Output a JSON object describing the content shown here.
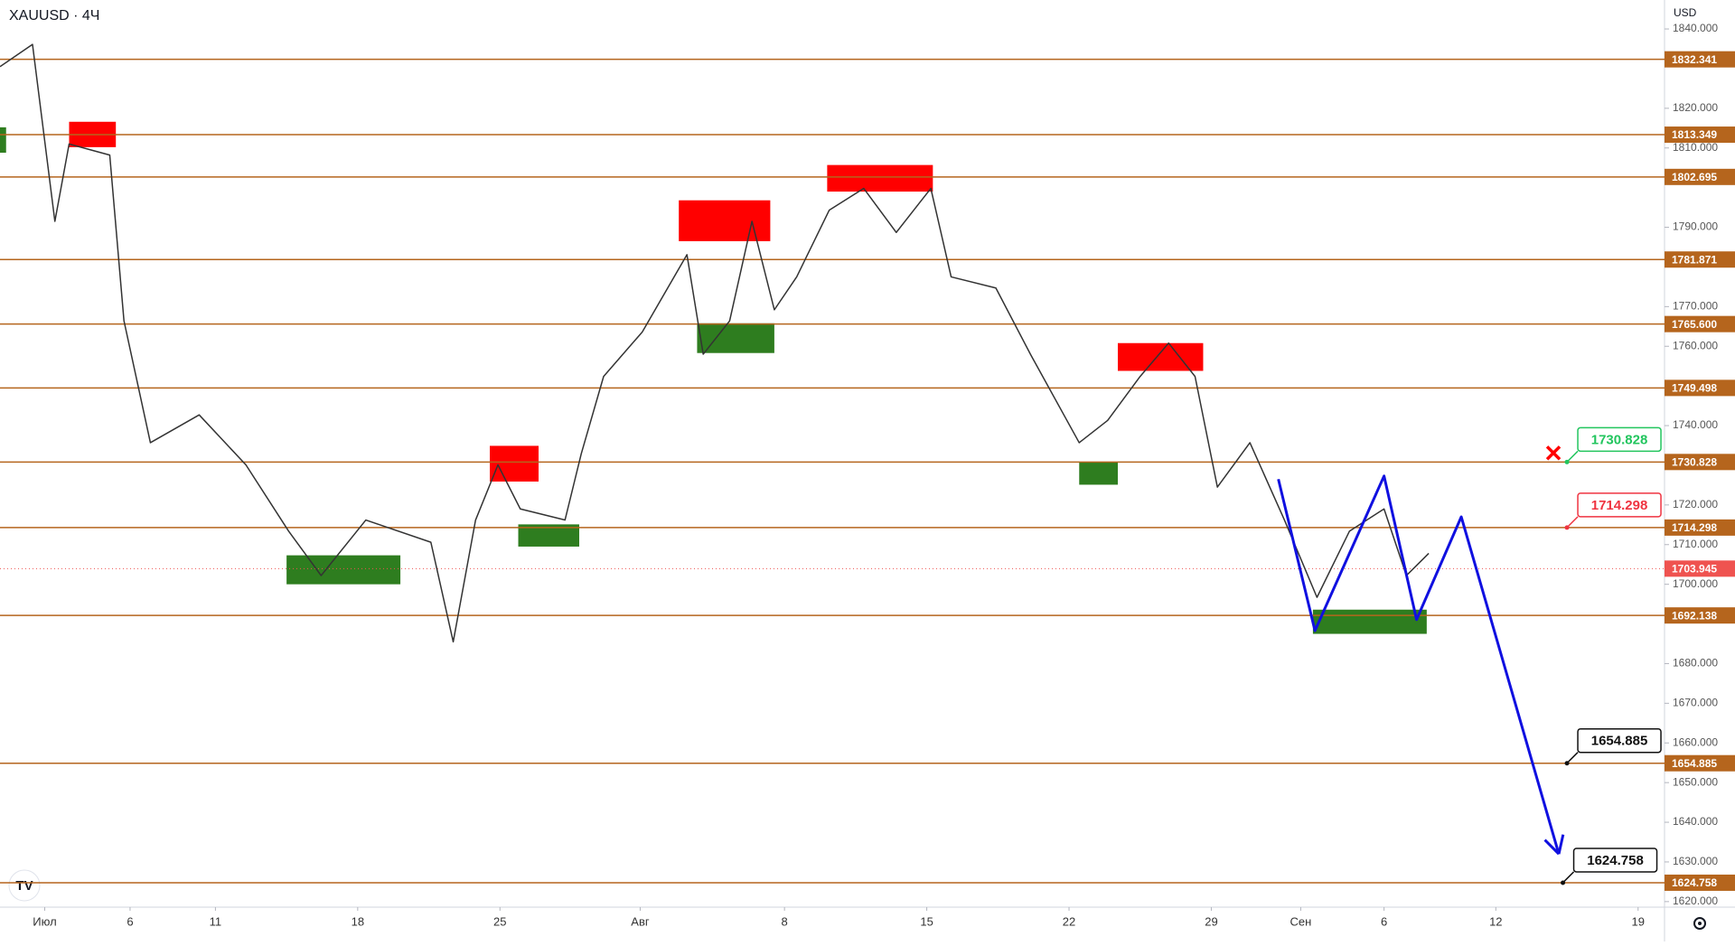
{
  "chart_data": {
    "type": "line",
    "title": "XAUUSD · 4Ч",
    "currency": "USD",
    "color": "#333333",
    "x": [
      0,
      1.6,
      2.7,
      3.4,
      5.4,
      6.1,
      7.4,
      9.8,
      12.1,
      14.2,
      15.8,
      18.0,
      21.2,
      22.3,
      23.4,
      24.5,
      25.6,
      27.8,
      28.6,
      29.7,
      31.6,
      33.8,
      34.6,
      35.9,
      37.0,
      38.1,
      39.2,
      40.8,
      42.5,
      44.1,
      45.8,
      46.8,
      49.0,
      50.7,
      53.1,
      54.5,
      56.1,
      57.5,
      58.8,
      59.9,
      61.5,
      63.2,
      64.8,
      66.4,
      68.1,
      69.2,
      70.3
    ],
    "values": [
      1830.5,
      1836.1,
      1791.5,
      1811.0,
      1808.2,
      1766.4,
      1735.7,
      1742.7,
      1730.1,
      1713.4,
      1702.2,
      1716.2,
      1710.6,
      1685.5,
      1716.2,
      1730.1,
      1719.0,
      1716.2,
      1732.9,
      1752.4,
      1763.6,
      1783.1,
      1758.0,
      1766.4,
      1791.5,
      1769.2,
      1777.5,
      1794.3,
      1799.8,
      1788.7,
      1799.8,
      1777.5,
      1774.7,
      1758.0,
      1735.7,
      1741.3,
      1752.4,
      1760.8,
      1752.4,
      1724.5,
      1735.7,
      1716.2,
      1696.7,
      1713.4,
      1719.0,
      1702.2,
      1707.8
    ],
    "xlim": [
      0,
      81.9
    ],
    "ylim": [
      1618.6,
      1847.3
    ],
    "xticks": [
      {
        "value": 2.2,
        "label": "Июл"
      },
      {
        "value": 6.4,
        "label": "6"
      },
      {
        "value": 10.6,
        "label": "11"
      },
      {
        "value": 17.6,
        "label": "18"
      },
      {
        "value": 24.6,
        "label": "25"
      },
      {
        "value": 31.5,
        "label": "Авг"
      },
      {
        "value": 38.6,
        "label": "8"
      },
      {
        "value": 45.6,
        "label": "15"
      },
      {
        "value": 52.6,
        "label": "22"
      },
      {
        "value": 59.6,
        "label": "29"
      },
      {
        "value": 64.0,
        "label": "Сен"
      },
      {
        "value": 68.1,
        "label": "6"
      },
      {
        "value": 73.6,
        "label": "12"
      },
      {
        "value": 80.6,
        "label": "19"
      }
    ],
    "yticks": [
      {
        "value": 1840,
        "label": "1840.000"
      },
      {
        "value": 1820,
        "label": "1820.000"
      },
      {
        "value": 1810,
        "label": "1810.000"
      },
      {
        "value": 1790,
        "label": "1790.000"
      },
      {
        "value": 1770,
        "label": "1770.000"
      },
      {
        "value": 1760,
        "label": "1760.000"
      },
      {
        "value": 1740,
        "label": "1740.000"
      },
      {
        "value": 1720,
        "label": "1720.000"
      },
      {
        "value": 1710,
        "label": "1710.000"
      },
      {
        "value": 1700,
        "label": "1700.000"
      },
      {
        "value": 1680,
        "label": "1680.000"
      },
      {
        "value": 1670,
        "label": "1670.000"
      },
      {
        "value": 1660,
        "label": "1660.000"
      },
      {
        "value": 1650,
        "label": "1650.000"
      },
      {
        "value": 1640,
        "label": "1640.000"
      },
      {
        "value": 1630,
        "label": "1630.000"
      },
      {
        "value": 1620,
        "label": "1620.000"
      }
    ],
    "levels": [
      {
        "value": 1832.341,
        "label": "1832.341"
      },
      {
        "value": 1813.349,
        "label": "1813.349"
      },
      {
        "value": 1802.695,
        "label": "1802.695"
      },
      {
        "value": 1781.871,
        "label": "1781.871"
      },
      {
        "value": 1765.6,
        "label": "1765.600"
      },
      {
        "value": 1749.498,
        "label": "1749.498"
      },
      {
        "value": 1730.828,
        "label": "1730.828"
      },
      {
        "value": 1714.298,
        "label": "1714.298"
      },
      {
        "value": 1692.138,
        "label": "1692.138"
      },
      {
        "value": 1654.885,
        "label": "1654.885"
      },
      {
        "value": 1624.758,
        "label": "1624.758"
      }
    ],
    "level_color": "#b5651d",
    "last_price": {
      "value": 1703.945,
      "label": "1703.945",
      "color": "#ef5350"
    },
    "zones": [
      {
        "x": [
          3.4,
          5.7
        ],
        "range": [
          1810.2,
          1816.6
        ],
        "color": "#ff0000"
      },
      {
        "x": [
          33.4,
          37.9
        ],
        "range": [
          1786.5,
          1796.8
        ],
        "color": "#ff0000"
      },
      {
        "x": [
          40.7,
          45.9
        ],
        "range": [
          1799.0,
          1805.7
        ],
        "color": "#ff0000"
      },
      {
        "x": [
          24.1,
          26.5
        ],
        "range": [
          1725.9,
          1734.9
        ],
        "color": "#ff0000"
      },
      {
        "x": [
          55.0,
          59.2
        ],
        "range": [
          1753.8,
          1760.8
        ],
        "color": "#ff0000"
      },
      {
        "x": [
          0,
          0.3
        ],
        "range": [
          1808.8,
          1815.2
        ],
        "color": "#2e7d1f"
      },
      {
        "x": [
          14.1,
          19.7
        ],
        "range": [
          1700.0,
          1707.3
        ],
        "color": "#2e7d1f"
      },
      {
        "x": [
          25.5,
          28.5
        ],
        "range": [
          1709.5,
          1715.1
        ],
        "color": "#2e7d1f"
      },
      {
        "x": [
          34.3,
          38.1
        ],
        "range": [
          1758.3,
          1765.8
        ],
        "color": "#2e7d1f"
      },
      {
        "x": [
          53.1,
          55.0
        ],
        "range": [
          1725.1,
          1730.7
        ],
        "color": "#2e7d1f"
      },
      {
        "x": [
          64.6,
          70.2
        ],
        "range": [
          1687.5,
          1693.6
        ],
        "color": "#2e7d1f"
      }
    ],
    "projection": {
      "x": [
        62.9,
        64.7,
        68.1,
        69.7,
        71.9,
        76.7
      ],
      "values": [
        1726.5,
        1688.3,
        1727.3,
        1691.1,
        1717.0,
        1632.0
      ],
      "color": "#1010e0"
    },
    "callouts": [
      {
        "x": 77.1,
        "value": 1730.828,
        "label": "1730.828",
        "color": "#22c55e"
      },
      {
        "x": 77.1,
        "value": 1714.298,
        "label": "1714.298",
        "color": "#ef3340"
      },
      {
        "x": 77.1,
        "value": 1654.885,
        "label": "1654.885",
        "color": "#111111"
      },
      {
        "x": 76.9,
        "value": 1624.758,
        "label": "1624.758",
        "color": "#111111"
      }
    ]
  }
}
